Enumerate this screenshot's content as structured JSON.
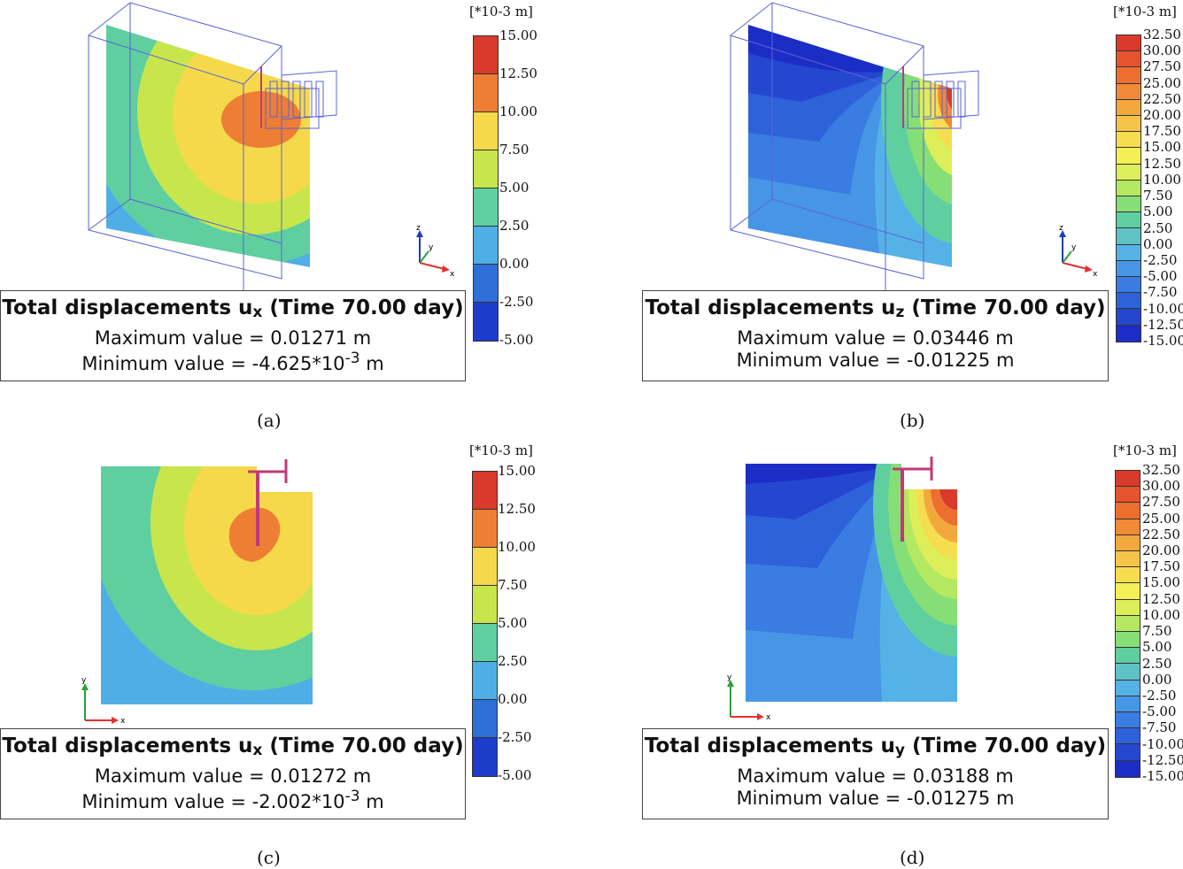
{
  "legend_unit": "[*10-3 m]",
  "legend_ux": [
    "15.00",
    "12.50",
    "10.00",
    "7.50",
    "5.00",
    "2.50",
    "0.00",
    "-2.50",
    "-5.00"
  ],
  "legend_uz": [
    "32.50",
    "30.00",
    "27.50",
    "25.00",
    "22.50",
    "20.00",
    "17.50",
    "15.00",
    "12.50",
    "10.00",
    "7.50",
    "5.00",
    "2.50",
    "0.00",
    "-2.50",
    "-5.00",
    "-7.50",
    "-10.00",
    "-12.50",
    "-15.00"
  ],
  "colors_ux": [
    "#d93a2b",
    "#ee7e33",
    "#f5d94a",
    "#c8e64c",
    "#5fcfa0",
    "#4faee6",
    "#2e6fd8",
    "#1e3ccc"
  ],
  "colors_uz": [
    "#d93a2b",
    "#e6542d",
    "#ec6f30",
    "#f08a36",
    "#f3a83e",
    "#f5c549",
    "#f6dd4f",
    "#f4ef55",
    "#dcef58",
    "#b4e860",
    "#86de76",
    "#5fcfa0",
    "#5fc3c6",
    "#55b2e6",
    "#4796e6",
    "#3a7ce2",
    "#2e62da",
    "#2547d0",
    "#1c2dc6"
  ],
  "axes": {
    "x": "x",
    "y": "y",
    "z": "z"
  },
  "panels": [
    {
      "caption": "(a)",
      "title_pre": "Total displacements u",
      "title_sub": "x",
      "title_post": " (Time 70.00 day)",
      "max_label": "Maximum value = 0.01271 m",
      "min_pre": "Minimum value = -4.625*10",
      "min_sup": "-3",
      "min_post": " m"
    },
    {
      "caption": "(b)",
      "title_pre": "Total displacements u",
      "title_sub": "z",
      "title_post": " (Time 70.00 day)",
      "max_label": "Maximum value = 0.03446 m",
      "min_label": "Minimum value = -0.01225 m"
    },
    {
      "caption": "(c)",
      "title_pre": "Total displacements u",
      "title_sub": "x",
      "title_post": " (Time 70.00 day)",
      "max_label": "Maximum value = 0.01272 m",
      "min_pre": "Minimum value = -2.002*10",
      "min_sup": "-3",
      "min_post": " m"
    },
    {
      "caption": "(d)",
      "title_pre": "Total displacements u",
      "title_sub": "y",
      "title_post": " (Time 70.00 day)",
      "max_label": "Maximum value = 0.03188 m",
      "min_label": "Minimum value = -0.01275 m"
    }
  ]
}
